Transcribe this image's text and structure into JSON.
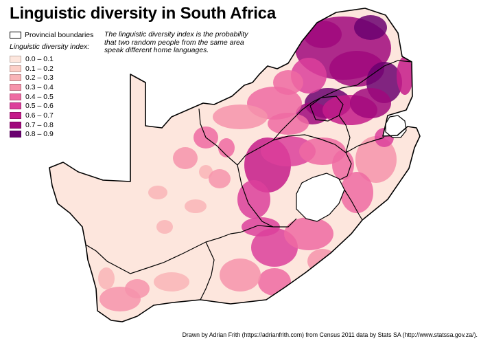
{
  "title": "Linguistic diversity in South Africa",
  "legend": {
    "boundary_label": "Provincial boundaries",
    "title": "Linguistic diversity index:",
    "items": [
      {
        "label": "0.0 – 0.1",
        "color": "#fde6dd"
      },
      {
        "label": "0.1 – 0.2",
        "color": "#fccfc7"
      },
      {
        "label": "0.2 – 0.3",
        "color": "#f9b4b7"
      },
      {
        "label": "0.3 – 0.4",
        "color": "#f693ab"
      },
      {
        "label": "0.4 – 0.5",
        "color": "#ee6aa2"
      },
      {
        "label": "0.5 – 0.6",
        "color": "#dc3f9b"
      },
      {
        "label": "0.6 – 0.7",
        "color": "#c51b8a"
      },
      {
        "label": "0.7 – 0.8",
        "color": "#a0087c"
      },
      {
        "label": "0.8 – 0.9",
        "color": "#6b0170"
      }
    ]
  },
  "note": "The linguistic diversity index is the probability that two random people from the same area speak different home languages.",
  "credit": "Drawn by Adrian Frith (https://adrianfrith.com) from Census 2011 data by Stats SA (http://www.statssa.gov.za/).",
  "colors": {
    "boundary": "#000000",
    "lesotho": "#ffffff"
  }
}
